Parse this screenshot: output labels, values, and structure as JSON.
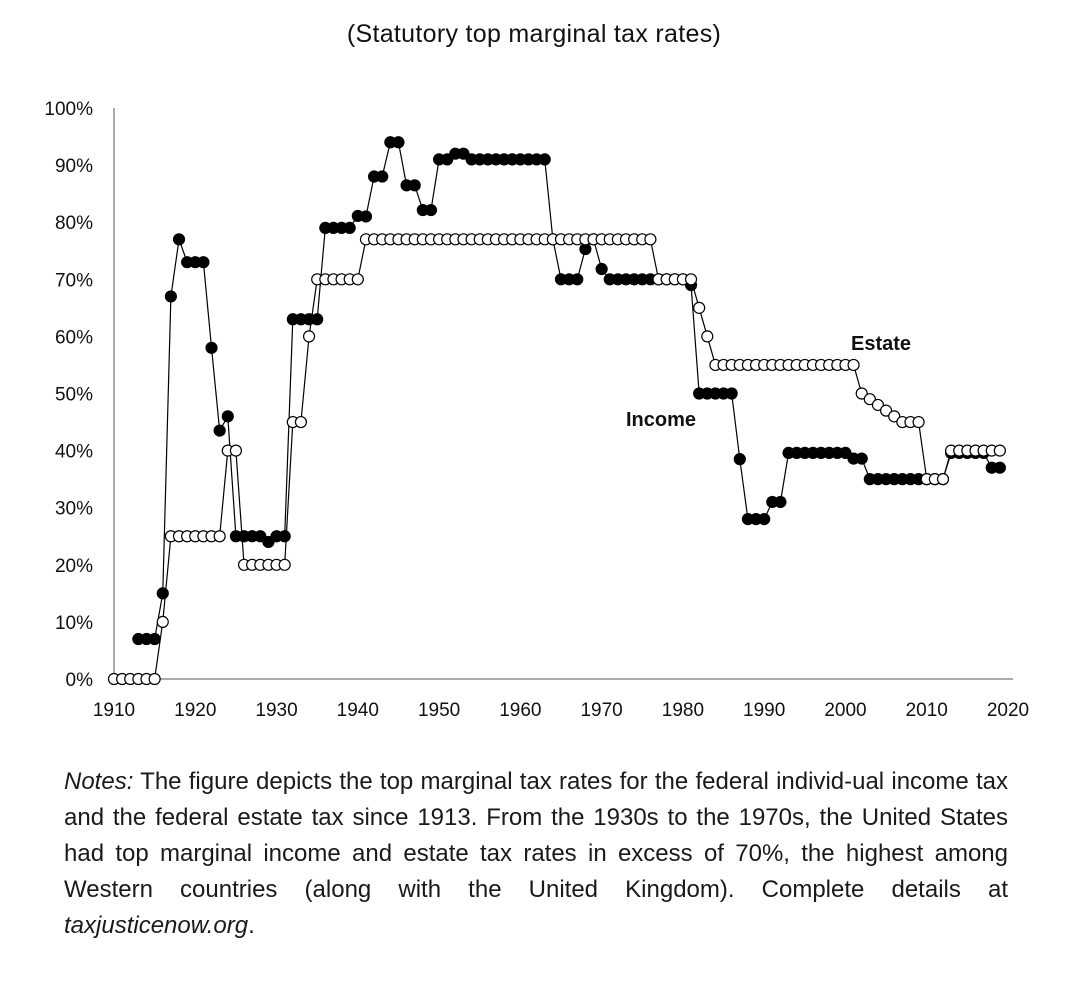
{
  "chart_data": {
    "type": "line",
    "subtitle": "(Statutory top marginal tax rates)",
    "x_ticks": [
      1910,
      1920,
      1930,
      1940,
      1950,
      1960,
      1970,
      1980,
      1990,
      2000,
      2010,
      2020
    ],
    "y_ticks": [
      0,
      10,
      20,
      30,
      40,
      50,
      60,
      70,
      80,
      90,
      100
    ],
    "y_tick_labels": [
      "0%",
      "10%",
      "20%",
      "30%",
      "40%",
      "50%",
      "60%",
      "70%",
      "80%",
      "90%",
      "100%"
    ],
    "xlim": [
      1910,
      2020
    ],
    "ylim": [
      0,
      100
    ],
    "grid": false,
    "series": [
      {
        "name": "Income",
        "marker": "filled-circle",
        "color": "#000000",
        "points": [
          [
            1913,
            7
          ],
          [
            1914,
            7
          ],
          [
            1915,
            7
          ],
          [
            1916,
            15
          ],
          [
            1917,
            67
          ],
          [
            1918,
            77
          ],
          [
            1919,
            73
          ],
          [
            1920,
            73
          ],
          [
            1921,
            73
          ],
          [
            1922,
            58
          ],
          [
            1923,
            43.5
          ],
          [
            1924,
            46
          ],
          [
            1925,
            25
          ],
          [
            1926,
            25
          ],
          [
            1927,
            25
          ],
          [
            1928,
            25
          ],
          [
            1929,
            24
          ],
          [
            1930,
            25
          ],
          [
            1931,
            25
          ],
          [
            1932,
            63
          ],
          [
            1933,
            63
          ],
          [
            1934,
            63
          ],
          [
            1935,
            63
          ],
          [
            1936,
            79
          ],
          [
            1937,
            79
          ],
          [
            1938,
            79
          ],
          [
            1939,
            79
          ],
          [
            1940,
            81.1
          ],
          [
            1941,
            81
          ],
          [
            1942,
            88
          ],
          [
            1943,
            88
          ],
          [
            1944,
            94
          ],
          [
            1945,
            94
          ],
          [
            1946,
            86.45
          ],
          [
            1947,
            86.45
          ],
          [
            1948,
            82.13
          ],
          [
            1949,
            82.13
          ],
          [
            1950,
            91
          ],
          [
            1951,
            91
          ],
          [
            1952,
            92
          ],
          [
            1953,
            92
          ],
          [
            1954,
            91
          ],
          [
            1955,
            91
          ],
          [
            1956,
            91
          ],
          [
            1957,
            91
          ],
          [
            1958,
            91
          ],
          [
            1959,
            91
          ],
          [
            1960,
            91
          ],
          [
            1961,
            91
          ],
          [
            1962,
            91
          ],
          [
            1963,
            91
          ],
          [
            1964,
            77
          ],
          [
            1965,
            70
          ],
          [
            1966,
            70
          ],
          [
            1967,
            70
          ],
          [
            1968,
            75.3
          ],
          [
            1969,
            77
          ],
          [
            1970,
            71.8
          ],
          [
            1971,
            70
          ],
          [
            1972,
            70
          ],
          [
            1973,
            70
          ],
          [
            1974,
            70
          ],
          [
            1975,
            70
          ],
          [
            1976,
            70
          ],
          [
            1977,
            70
          ],
          [
            1978,
            70
          ],
          [
            1979,
            70
          ],
          [
            1980,
            70
          ],
          [
            1981,
            69
          ],
          [
            1982,
            50
          ],
          [
            1983,
            50
          ],
          [
            1984,
            50
          ],
          [
            1985,
            50
          ],
          [
            1986,
            50
          ],
          [
            1987,
            38.5
          ],
          [
            1988,
            28
          ],
          [
            1989,
            28
          ],
          [
            1990,
            28
          ],
          [
            1991,
            31
          ],
          [
            1992,
            31
          ],
          [
            1993,
            39.6
          ],
          [
            1994,
            39.6
          ],
          [
            1995,
            39.6
          ],
          [
            1996,
            39.6
          ],
          [
            1997,
            39.6
          ],
          [
            1998,
            39.6
          ],
          [
            1999,
            39.6
          ],
          [
            2000,
            39.6
          ],
          [
            2001,
            38.6
          ],
          [
            2002,
            38.6
          ],
          [
            2003,
            35
          ],
          [
            2004,
            35
          ],
          [
            2005,
            35
          ],
          [
            2006,
            35
          ],
          [
            2007,
            35
          ],
          [
            2008,
            35
          ],
          [
            2009,
            35
          ],
          [
            2010,
            35
          ],
          [
            2011,
            35
          ],
          [
            2012,
            35
          ],
          [
            2013,
            39.6
          ],
          [
            2014,
            39.6
          ],
          [
            2015,
            39.6
          ],
          [
            2016,
            39.6
          ],
          [
            2017,
            39.6
          ],
          [
            2018,
            37
          ],
          [
            2019,
            37
          ]
        ]
      },
      {
        "name": "Estate",
        "marker": "hollow-circle",
        "color": "#000000",
        "points": [
          [
            1910,
            0
          ],
          [
            1911,
            0
          ],
          [
            1912,
            0
          ],
          [
            1913,
            0
          ],
          [
            1914,
            0
          ],
          [
            1915,
            0
          ],
          [
            1916,
            10
          ],
          [
            1917,
            25
          ],
          [
            1918,
            25
          ],
          [
            1919,
            25
          ],
          [
            1920,
            25
          ],
          [
            1921,
            25
          ],
          [
            1922,
            25
          ],
          [
            1923,
            25
          ],
          [
            1924,
            40
          ],
          [
            1925,
            40
          ],
          [
            1926,
            20
          ],
          [
            1927,
            20
          ],
          [
            1928,
            20
          ],
          [
            1929,
            20
          ],
          [
            1930,
            20
          ],
          [
            1931,
            20
          ],
          [
            1932,
            45
          ],
          [
            1933,
            45
          ],
          [
            1934,
            60
          ],
          [
            1935,
            70
          ],
          [
            1936,
            70
          ],
          [
            1937,
            70
          ],
          [
            1938,
            70
          ],
          [
            1939,
            70
          ],
          [
            1940,
            70
          ],
          [
            1941,
            77
          ],
          [
            1942,
            77
          ],
          [
            1943,
            77
          ],
          [
            1944,
            77
          ],
          [
            1945,
            77
          ],
          [
            1946,
            77
          ],
          [
            1947,
            77
          ],
          [
            1948,
            77
          ],
          [
            1949,
            77
          ],
          [
            1950,
            77
          ],
          [
            1951,
            77
          ],
          [
            1952,
            77
          ],
          [
            1953,
            77
          ],
          [
            1954,
            77
          ],
          [
            1955,
            77
          ],
          [
            1956,
            77
          ],
          [
            1957,
            77
          ],
          [
            1958,
            77
          ],
          [
            1959,
            77
          ],
          [
            1960,
            77
          ],
          [
            1961,
            77
          ],
          [
            1962,
            77
          ],
          [
            1963,
            77
          ],
          [
            1964,
            77
          ],
          [
            1965,
            77
          ],
          [
            1966,
            77
          ],
          [
            1967,
            77
          ],
          [
            1968,
            77
          ],
          [
            1969,
            77
          ],
          [
            1970,
            77
          ],
          [
            1971,
            77
          ],
          [
            1972,
            77
          ],
          [
            1973,
            77
          ],
          [
            1974,
            77
          ],
          [
            1975,
            77
          ],
          [
            1976,
            77
          ],
          [
            1977,
            70
          ],
          [
            1978,
            70
          ],
          [
            1979,
            70
          ],
          [
            1980,
            70
          ],
          [
            1981,
            70
          ],
          [
            1982,
            65
          ],
          [
            1983,
            60
          ],
          [
            1984,
            55
          ],
          [
            1985,
            55
          ],
          [
            1986,
            55
          ],
          [
            1987,
            55
          ],
          [
            1988,
            55
          ],
          [
            1989,
            55
          ],
          [
            1990,
            55
          ],
          [
            1991,
            55
          ],
          [
            1992,
            55
          ],
          [
            1993,
            55
          ],
          [
            1994,
            55
          ],
          [
            1995,
            55
          ],
          [
            1996,
            55
          ],
          [
            1997,
            55
          ],
          [
            1998,
            55
          ],
          [
            1999,
            55
          ],
          [
            2000,
            55
          ],
          [
            2001,
            55
          ],
          [
            2002,
            50
          ],
          [
            2003,
            49
          ],
          [
            2004,
            48
          ],
          [
            2005,
            47
          ],
          [
            2006,
            46
          ],
          [
            2007,
            45
          ],
          [
            2008,
            45
          ],
          [
            2009,
            45
          ],
          [
            2010,
            35
          ],
          [
            2011,
            35
          ],
          [
            2012,
            35
          ],
          [
            2013,
            40
          ],
          [
            2014,
            40
          ],
          [
            2015,
            40
          ],
          [
            2016,
            40
          ],
          [
            2017,
            40
          ],
          [
            2018,
            40
          ],
          [
            2019,
            40
          ]
        ]
      }
    ],
    "annotations": [
      "Income",
      "Estate"
    ]
  },
  "notes": {
    "lead": "Notes:",
    "body": " The figure depicts the top marginal tax rates for the federal individ-ual income tax and the federal estate tax since 1913. From the 1930s to the 1970s, the United States had top marginal income and estate tax rates in excess of 70%, the highest among Western countries (along with the United Kingdom). Complete details at ",
    "link": "taxjusticenow.org",
    "end": "."
  }
}
